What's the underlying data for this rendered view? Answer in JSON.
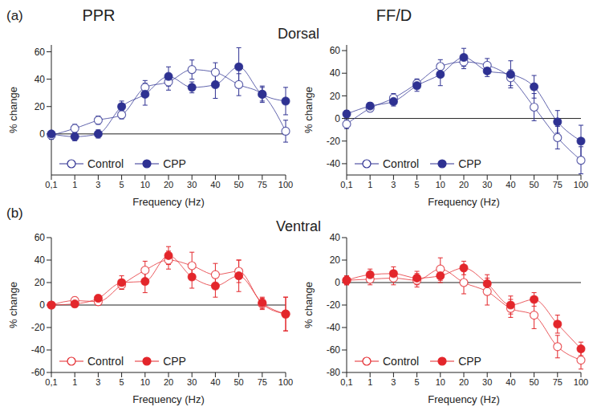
{
  "figure": {
    "panel_labels": [
      "(a)",
      "(b)"
    ],
    "row_labels": [
      "Dorsal",
      "Ventral"
    ]
  },
  "chart_data": [
    {
      "type": "line",
      "title": "PPR",
      "x_label": "Frequency (Hz)",
      "y_label": "% change",
      "categories": [
        "0,1",
        "1",
        "3",
        "5",
        "10",
        "20",
        "30",
        "40",
        "50",
        "75",
        "100"
      ],
      "ylim": [
        -30,
        65
      ],
      "yticks": [
        0,
        20,
        40,
        60
      ],
      "hlines": [
        0
      ],
      "legend": "lower left",
      "series": [
        {
          "name": "Control",
          "color": "#2e3192",
          "marker": "open_circle",
          "line_style": "solid",
          "values": [
            -1,
            4,
            10,
            14,
            34,
            38,
            47,
            45,
            36,
            29,
            2
          ],
          "errors": [
            3,
            3,
            3,
            3,
            5,
            6,
            7,
            7,
            8,
            5,
            8
          ]
        },
        {
          "name": "CPP",
          "color": "#2e3192",
          "marker": "circle",
          "line_style": "solid",
          "values": [
            0,
            -2,
            0,
            20,
            29,
            42,
            34,
            36,
            49,
            29,
            24
          ],
          "errors": [
            2,
            3,
            3,
            4,
            8,
            7,
            4,
            10,
            14,
            6,
            10
          ]
        }
      ]
    },
    {
      "type": "line",
      "title": "FF/D",
      "x_label": "Frequency (Hz)",
      "y_label": "% change",
      "categories": [
        "0,1",
        "1",
        "3",
        "5",
        "10",
        "20",
        "30",
        "40",
        "50",
        "75",
        "100"
      ],
      "ylim": [
        -50,
        65
      ],
      "yticks": [
        -40,
        -20,
        0,
        20,
        40,
        60
      ],
      "hlines": [
        0
      ],
      "legend": "lower left",
      "series": [
        {
          "name": "Control",
          "color": "#2e3192",
          "marker": "open_circle",
          "line_style": "solid",
          "values": [
            -5,
            9,
            18,
            31,
            46,
            50,
            47,
            36,
            10,
            -17,
            -37
          ],
          "errors": [
            4,
            3,
            4,
            4,
            6,
            6,
            6,
            7,
            12,
            10,
            12
          ]
        },
        {
          "name": "CPP",
          "color": "#2e3192",
          "marker": "circle",
          "line_style": "solid",
          "values": [
            4,
            11,
            15,
            29,
            39,
            54,
            42,
            39,
            28,
            -3,
            -20
          ],
          "errors": [
            3,
            3,
            4,
            5,
            10,
            8,
            5,
            12,
            10,
            10,
            14
          ]
        }
      ]
    },
    {
      "type": "line",
      "x_label": "Frequency (Hz)",
      "y_label": "% change",
      "categories": [
        "0,1",
        "1",
        "3",
        "5",
        "10",
        "20",
        "30",
        "40",
        "50",
        "75",
        "100"
      ],
      "ylim": [
        -60,
        60
      ],
      "yticks": [
        -60,
        -40,
        -20,
        0,
        20,
        40,
        60
      ],
      "hlines": [
        0
      ],
      "legend": "lower left",
      "series": [
        {
          "name": "Control",
          "color": "#e3262b",
          "marker": "open_circle",
          "line_style": "solid",
          "values": [
            0,
            4,
            3,
            18,
            31,
            40,
            35,
            27,
            30,
            1,
            -8
          ],
          "errors": [
            2,
            3,
            3,
            4,
            8,
            8,
            12,
            10,
            10,
            5,
            15
          ]
        },
        {
          "name": "CPP",
          "color": "#e3262b",
          "marker": "circle",
          "line_style": "solid",
          "values": [
            0,
            1,
            6,
            20,
            21,
            44,
            25,
            17,
            26,
            2,
            -8
          ],
          "errors": [
            2,
            3,
            3,
            6,
            10,
            8,
            10,
            10,
            14,
            5,
            15
          ]
        }
      ]
    },
    {
      "type": "line",
      "x_label": "Frequency (Hz)",
      "y_label": "% change",
      "categories": [
        "0,1",
        "1",
        "3",
        "5",
        "10",
        "20",
        "30",
        "40",
        "50",
        "75",
        "100"
      ],
      "ylim": [
        -80,
        40
      ],
      "yticks": [
        -80,
        -60,
        -40,
        -20,
        0,
        20,
        40
      ],
      "hlines": [
        0
      ],
      "legend": "lower left",
      "series": [
        {
          "name": "Control",
          "color": "#e3262b",
          "marker": "open_circle",
          "line_style": "solid",
          "values": [
            2,
            3,
            4,
            2,
            12,
            0,
            -8,
            -23,
            -29,
            -57,
            -69
          ],
          "errors": [
            4,
            5,
            6,
            6,
            10,
            10,
            12,
            8,
            12,
            10,
            8
          ]
        },
        {
          "name": "CPP",
          "color": "#e3262b",
          "marker": "circle",
          "line_style": "solid",
          "values": [
            2,
            7,
            8,
            4,
            6,
            13,
            -1,
            -20,
            -15,
            -37,
            -59
          ],
          "errors": [
            4,
            5,
            6,
            6,
            6,
            6,
            8,
            8,
            6,
            8,
            6
          ]
        }
      ]
    }
  ]
}
